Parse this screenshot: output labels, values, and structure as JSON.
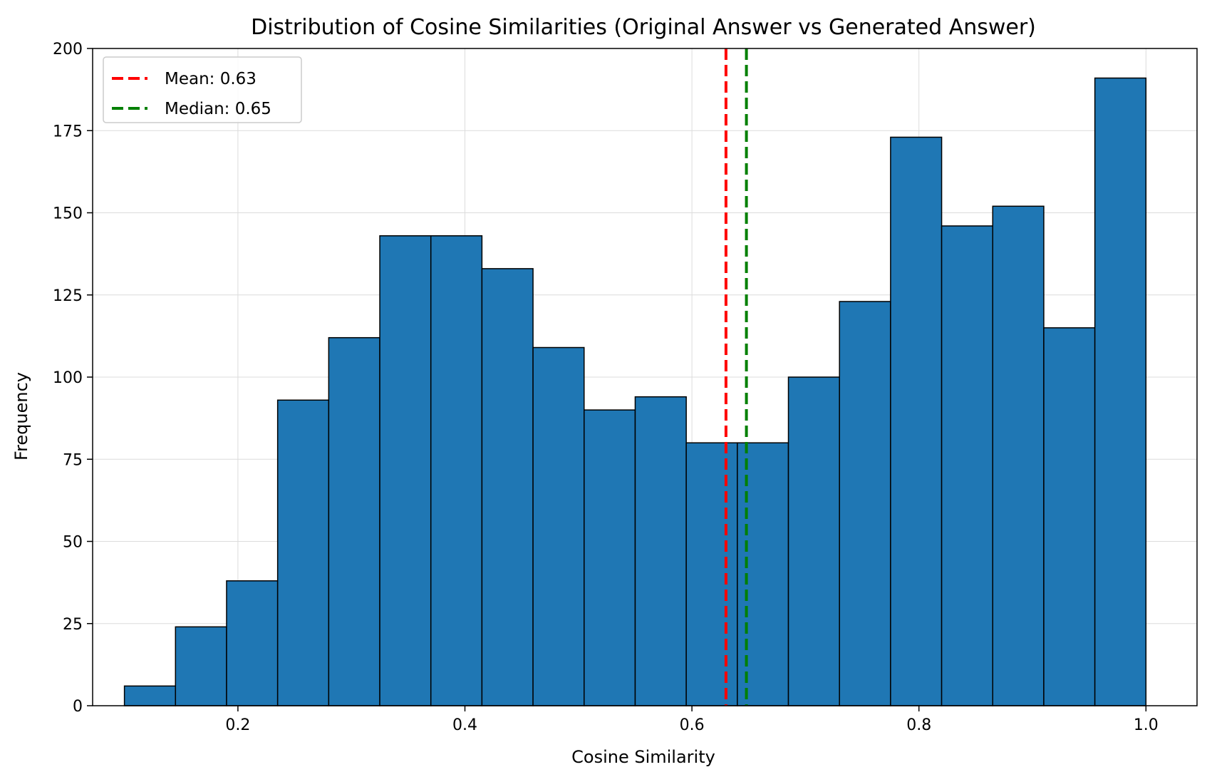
{
  "chart_data": {
    "type": "bar",
    "title": "Distribution of Cosine Similarities (Original Answer vs Generated Answer)",
    "xlabel": "Cosine Similarity",
    "ylabel": "Frequency",
    "xlim": [
      0.072,
      1.045
    ],
    "ylim": [
      0,
      200
    ],
    "xticks": [
      0.2,
      0.4,
      0.6,
      0.8,
      1.0
    ],
    "xtick_labels": [
      "0.2",
      "0.4",
      "0.6",
      "0.8",
      "1.0"
    ],
    "yticks": [
      0,
      25,
      50,
      75,
      100,
      125,
      150,
      175,
      200
    ],
    "ytick_labels": [
      "0",
      "25",
      "50",
      "75",
      "100",
      "125",
      "150",
      "175",
      "200"
    ],
    "grid": true,
    "legend_position": "top-left",
    "bin_edges": [
      0.1,
      0.145,
      0.19,
      0.235,
      0.28,
      0.325,
      0.37,
      0.415,
      0.46,
      0.505,
      0.55,
      0.595,
      0.64,
      0.685,
      0.73,
      0.775,
      0.82,
      0.865,
      0.91,
      0.955,
      1.0
    ],
    "values": [
      6,
      24,
      38,
      93,
      112,
      143,
      143,
      133,
      109,
      90,
      94,
      80,
      80,
      100,
      123,
      173,
      146,
      152,
      115,
      191
    ],
    "bar_color": "#1f77b4",
    "bar_edge_color": "#000000",
    "reference_lines": [
      {
        "label": "Mean: 0.63",
        "value": 0.63,
        "color": "#ff0000"
      },
      {
        "label": "Median: 0.65",
        "value": 0.648,
        "color": "#008000"
      }
    ]
  }
}
